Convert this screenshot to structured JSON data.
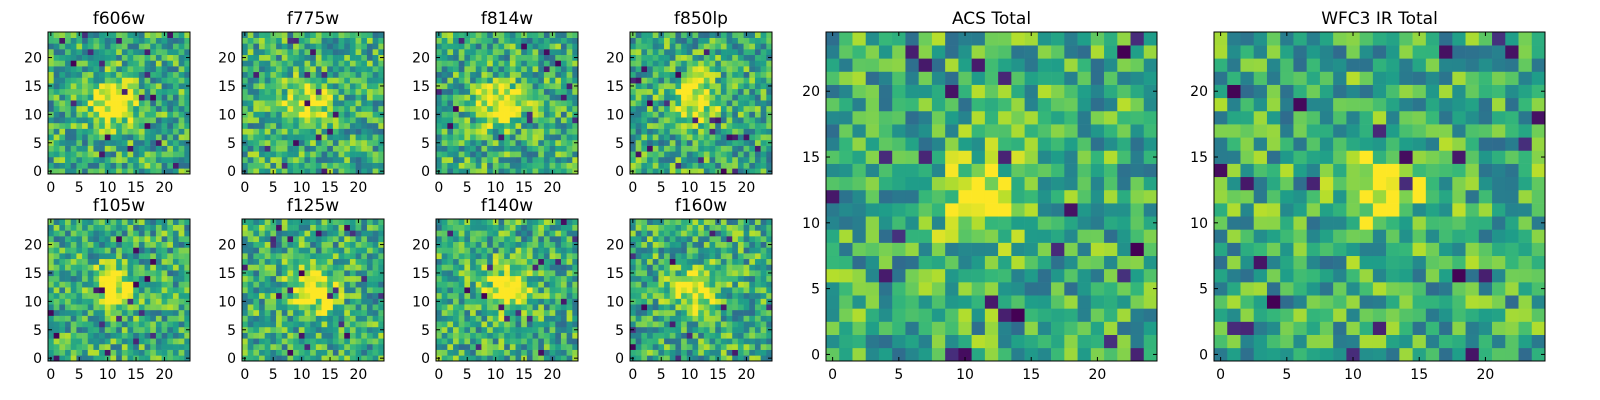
{
  "figure": {
    "description_colormap": "viridis"
  },
  "colors": {
    "frame": "#000000",
    "background": "#ffffff"
  },
  "chart_data": [
    {
      "type": "heatmap",
      "title": "f606w",
      "grid_size": 25,
      "x_ticks": [
        "0",
        "5",
        "10",
        "15",
        "20"
      ],
      "y_ticks": [
        "0",
        "5",
        "10",
        "15",
        "20"
      ],
      "xlim": [
        -0.5,
        24.5
      ],
      "ylim": [
        -0.5,
        24.5
      ],
      "source_center": [
        11,
        12
      ],
      "colormap": "viridis"
    },
    {
      "type": "heatmap",
      "title": "f775w",
      "grid_size": 25,
      "x_ticks": [
        "0",
        "5",
        "10",
        "15",
        "20"
      ],
      "y_ticks": [
        "0",
        "5",
        "10",
        "15",
        "20"
      ],
      "xlim": [
        -0.5,
        24.5
      ],
      "ylim": [
        -0.5,
        24.5
      ],
      "source_center": [
        11,
        12
      ],
      "colormap": "viridis"
    },
    {
      "type": "heatmap",
      "title": "f814w",
      "grid_size": 25,
      "x_ticks": [
        "0",
        "5",
        "10",
        "15",
        "20"
      ],
      "y_ticks": [
        "0",
        "5",
        "10",
        "15",
        "20"
      ],
      "xlim": [
        -0.5,
        24.5
      ],
      "ylim": [
        -0.5,
        24.5
      ],
      "source_center": [
        11,
        12
      ],
      "colormap": "viridis"
    },
    {
      "type": "heatmap",
      "title": "f850lp",
      "grid_size": 25,
      "x_ticks": [
        "0",
        "5",
        "10",
        "15",
        "20"
      ],
      "y_ticks": [
        "0",
        "5",
        "10",
        "15",
        "20"
      ],
      "xlim": [
        -0.5,
        24.5
      ],
      "ylim": [
        -0.5,
        24.5
      ],
      "source_center": [
        11,
        13
      ],
      "colormap": "viridis"
    },
    {
      "type": "heatmap",
      "title": "f105w",
      "grid_size": 25,
      "x_ticks": [
        "0",
        "5",
        "10",
        "15",
        "20"
      ],
      "y_ticks": [
        "0",
        "5",
        "10",
        "15",
        "20"
      ],
      "xlim": [
        -0.5,
        24.5
      ],
      "ylim": [
        -0.5,
        24.5
      ],
      "source_center": [
        11,
        12
      ],
      "colormap": "viridis"
    },
    {
      "type": "heatmap",
      "title": "f125w",
      "grid_size": 25,
      "x_ticks": [
        "0",
        "5",
        "10",
        "15",
        "20"
      ],
      "y_ticks": [
        "0",
        "5",
        "10",
        "15",
        "20"
      ],
      "xlim": [
        -0.5,
        24.5
      ],
      "ylim": [
        -0.5,
        24.5
      ],
      "source_center": [
        12,
        12
      ],
      "colormap": "viridis"
    },
    {
      "type": "heatmap",
      "title": "f140w",
      "grid_size": 25,
      "x_ticks": [
        "0",
        "5",
        "10",
        "15",
        "20"
      ],
      "y_ticks": [
        "0",
        "5",
        "10",
        "15",
        "20"
      ],
      "xlim": [
        -0.5,
        24.5
      ],
      "ylim": [
        -0.5,
        24.5
      ],
      "source_center": [
        12,
        12
      ],
      "colormap": "viridis"
    },
    {
      "type": "heatmap",
      "title": "f160w",
      "grid_size": 25,
      "x_ticks": [
        "0",
        "5",
        "10",
        "15",
        "20"
      ],
      "y_ticks": [
        "0",
        "5",
        "10",
        "15",
        "20"
      ],
      "xlim": [
        -0.5,
        24.5
      ],
      "ylim": [
        -0.5,
        24.5
      ],
      "source_center": [
        11,
        12
      ],
      "colormap": "viridis"
    },
    {
      "type": "heatmap",
      "title": "ACS Total",
      "grid_size": 25,
      "x_ticks": [
        "0",
        "5",
        "10",
        "15",
        "20"
      ],
      "y_ticks": [
        "0",
        "5",
        "10",
        "15",
        "20"
      ],
      "xlim": [
        -0.5,
        24.5
      ],
      "ylim": [
        -0.5,
        24.5
      ],
      "source_center": [
        11,
        12
      ],
      "colormap": "viridis"
    },
    {
      "type": "heatmap",
      "title": "WFC3 IR Total",
      "grid_size": 25,
      "x_ticks": [
        "0",
        "5",
        "10",
        "15",
        "20"
      ],
      "y_ticks": [
        "0",
        "5",
        "10",
        "15",
        "20"
      ],
      "xlim": [
        -0.5,
        24.5
      ],
      "ylim": [
        -0.5,
        24.5
      ],
      "source_center": [
        12,
        13
      ],
      "colormap": "viridis"
    }
  ]
}
